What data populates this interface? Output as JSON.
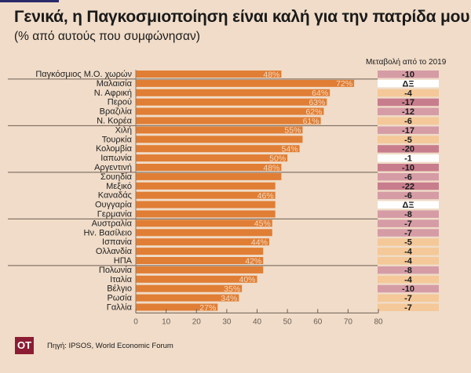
{
  "header": {
    "title": "Γενικά, η Παγκοσμιοποίηση είναι καλή για την πατρίδα μου",
    "subtitle": "(% από αυτούς που συμφώνησαν)",
    "change_column_title": "Μεταβολή από το 2019"
  },
  "footer": {
    "logo": "ΟΤ",
    "source": "Πηγή: IPSOS, World Economic Forum"
  },
  "colors": {
    "background": "#f0dcc8",
    "bar": "#e07e35",
    "bar_label": "#f6d9bd",
    "change_dark": "#c87d8d",
    "change_medium": "#d59ca6",
    "change_peach": "#f4c898",
    "change_white": "#ffffff"
  },
  "chart_data": {
    "type": "bar",
    "orientation": "horizontal",
    "title": "Γενικά, η Παγκοσμιοποίηση είναι καλή για την πατρίδα μου",
    "subtitle": "(% από αυτούς που συμφώνησαν)",
    "xlabel": "",
    "ylabel": "",
    "xlim": [
      0,
      80
    ],
    "xticks": [
      0,
      10,
      20,
      30,
      40,
      50,
      60,
      70,
      80
    ],
    "grid": false,
    "categories": [
      "Παγκόσμιος Μ.Ο. χωρών",
      "Μαλαισία",
      "Ν. Αφρική",
      "Περού",
      "Βραζιλία",
      "Ν. Κορέα",
      "Χιλή",
      "Τουρκία",
      "Κολομβία",
      "Ιαπωνία",
      "Αργεντινή",
      "Σουηδία",
      "Μεξικό",
      "Καναδάς",
      "Ουγγαρία",
      "Γερμανία",
      "Αυστραλία",
      "Ην. Βασίλειο",
      "Ισπανία",
      "Ολλανδία",
      "ΗΠΑ",
      "Πολωνία",
      "Ιταλία",
      "Βέλγιο",
      "Ρωσία",
      "Γαλλία"
    ],
    "values": [
      48,
      72,
      64,
      63,
      62,
      61,
      55,
      55,
      54,
      50,
      48,
      48,
      46,
      46,
      46,
      46,
      45,
      45,
      44,
      42,
      42,
      42,
      40,
      35,
      34,
      27
    ],
    "data_labels": [
      "48%",
      "72%",
      "64%",
      "63%",
      "62%",
      "61%",
      "55%",
      "",
      "54%",
      "50%",
      "48%",
      "",
      "",
      "46%",
      "",
      "",
      "45%",
      "",
      "44%",
      "",
      "42%",
      "",
      "40%",
      "35%",
      "34%",
      "27%"
    ],
    "group_separators_after": [
      0,
      5,
      10,
      15,
      20
    ],
    "change_since_2019": {
      "title": "Μεταβολή από το 2019",
      "values": [
        "-10",
        "ΔΞ",
        "-4",
        "-17",
        "-12",
        "-6",
        "-17",
        "-5",
        "-20",
        "-1",
        "-10",
        "-6",
        "-22",
        "-6",
        "ΔΞ",
        "-8",
        "-7",
        "-7",
        "-5",
        "-4",
        "-4",
        "-8",
        "-4",
        "-10",
        "-7",
        "-7"
      ],
      "shade": [
        "medium",
        "white",
        "peach",
        "dark",
        "medium",
        "peach",
        "medium",
        "peach",
        "dark",
        "white",
        "dark",
        "medium",
        "dark",
        "medium",
        "white",
        "medium",
        "medium",
        "medium",
        "peach",
        "peach",
        "peach",
        "medium",
        "peach",
        "medium",
        "peach",
        "peach"
      ]
    }
  }
}
